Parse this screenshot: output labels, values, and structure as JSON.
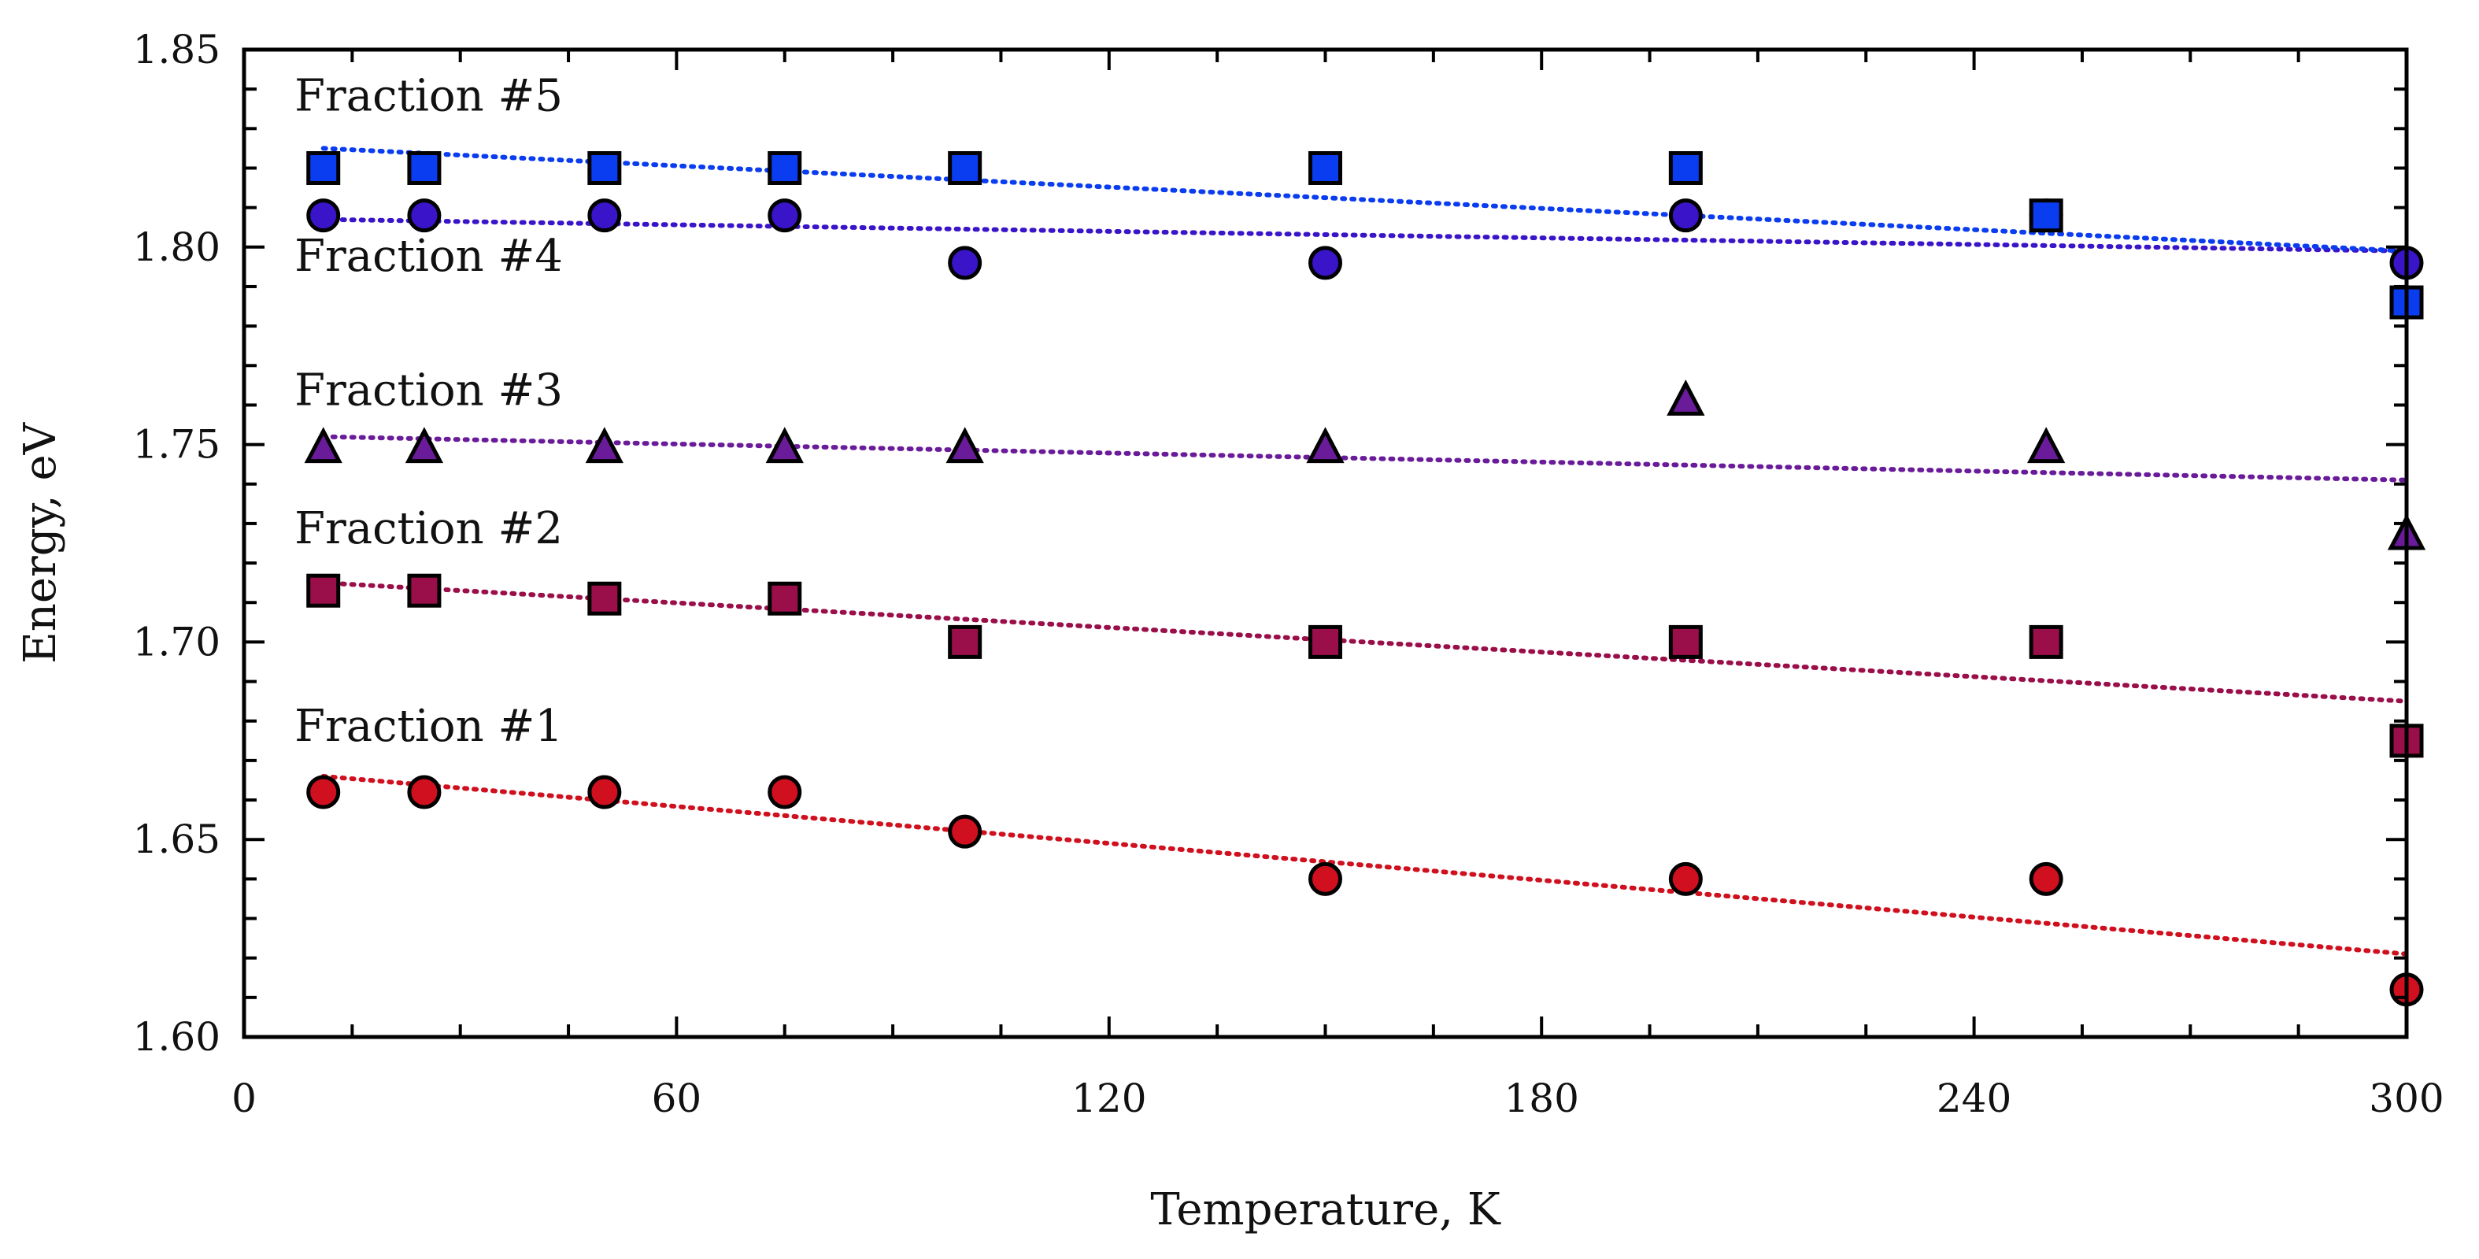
{
  "chart_data": {
    "type": "scatter",
    "xlabel": "Temperature, K",
    "ylabel": "Energy, eV",
    "xlim": [
      0,
      300
    ],
    "ylim": [
      1.6,
      1.85
    ],
    "x_ticks": [
      0,
      60,
      120,
      180,
      240,
      300
    ],
    "x_tick_labels": [
      "0",
      "60",
      "120",
      "180",
      "240",
      "300"
    ],
    "y_ticks": [
      1.6,
      1.65,
      1.7,
      1.75,
      1.8,
      1.85
    ],
    "y_tick_labels": [
      "1.60",
      "1.65",
      "1.70",
      "1.75",
      "1.80",
      "1.85"
    ],
    "grid": false,
    "series": [
      {
        "name": "Fraction #1",
        "marker": "circle",
        "color": "#d0101e",
        "trend_color": "#d0101e",
        "x": [
          11,
          25,
          50,
          75,
          100,
          150,
          200,
          250,
          300
        ],
        "y": [
          1.662,
          1.662,
          1.662,
          1.662,
          1.652,
          1.64,
          1.64,
          1.64,
          1.612
        ],
        "trend": {
          "x": [
            11,
            300
          ],
          "y": [
            1.666,
            1.621
          ]
        }
      },
      {
        "name": "Fraction #2",
        "marker": "square",
        "color": "#9a0e4a",
        "trend_color": "#9a0e4a",
        "x": [
          11,
          25,
          50,
          75,
          100,
          150,
          200,
          250,
          300
        ],
        "y": [
          1.713,
          1.713,
          1.711,
          1.711,
          1.7,
          1.7,
          1.7,
          1.7,
          1.675
        ],
        "trend": {
          "x": [
            11,
            300
          ],
          "y": [
            1.715,
            1.685
          ]
        }
      },
      {
        "name": "Fraction #3",
        "marker": "triangle",
        "color": "#6a1b9a",
        "trend_color": "#6a1b9a",
        "x": [
          11,
          25,
          50,
          75,
          100,
          150,
          200,
          250,
          300
        ],
        "y": [
          1.749,
          1.749,
          1.749,
          1.749,
          1.749,
          1.749,
          1.761,
          1.749,
          1.727
        ],
        "trend": {
          "x": [
            11,
            300
          ],
          "y": [
            1.752,
            1.741
          ]
        }
      },
      {
        "name": "Fraction #4",
        "marker": "circle",
        "color": "#3a14c8",
        "trend_color": "#3a14c8",
        "x": [
          11,
          25,
          50,
          75,
          100,
          150,
          200,
          250,
          300
        ],
        "y": [
          1.808,
          1.808,
          1.808,
          1.808,
          1.796,
          1.796,
          1.808,
          1.808,
          1.796
        ],
        "trend": {
          "x": [
            11,
            300
          ],
          "y": [
            1.807,
            1.799
          ]
        }
      },
      {
        "name": "Fraction #5",
        "marker": "square",
        "color": "#0a3cf0",
        "trend_color": "#0a3cf0",
        "x": [
          11,
          25,
          50,
          75,
          100,
          150,
          200,
          250,
          300
        ],
        "y": [
          1.82,
          1.82,
          1.82,
          1.82,
          1.82,
          1.82,
          1.82,
          1.808,
          1.786
        ],
        "trend": {
          "x": [
            11,
            300
          ],
          "y": [
            1.825,
            1.799
          ]
        }
      }
    ],
    "annotations": [
      {
        "text": "Fraction #1",
        "x": 7,
        "y": 1.675
      },
      {
        "text": "Fraction #2",
        "x": 7,
        "y": 1.725
      },
      {
        "text": "Fraction #3",
        "x": 7,
        "y": 1.76
      },
      {
        "text": "Fraction #4",
        "x": 7,
        "y": 1.794
      },
      {
        "text": "Fraction #5",
        "x": 7,
        "y": 1.8345
      }
    ]
  }
}
